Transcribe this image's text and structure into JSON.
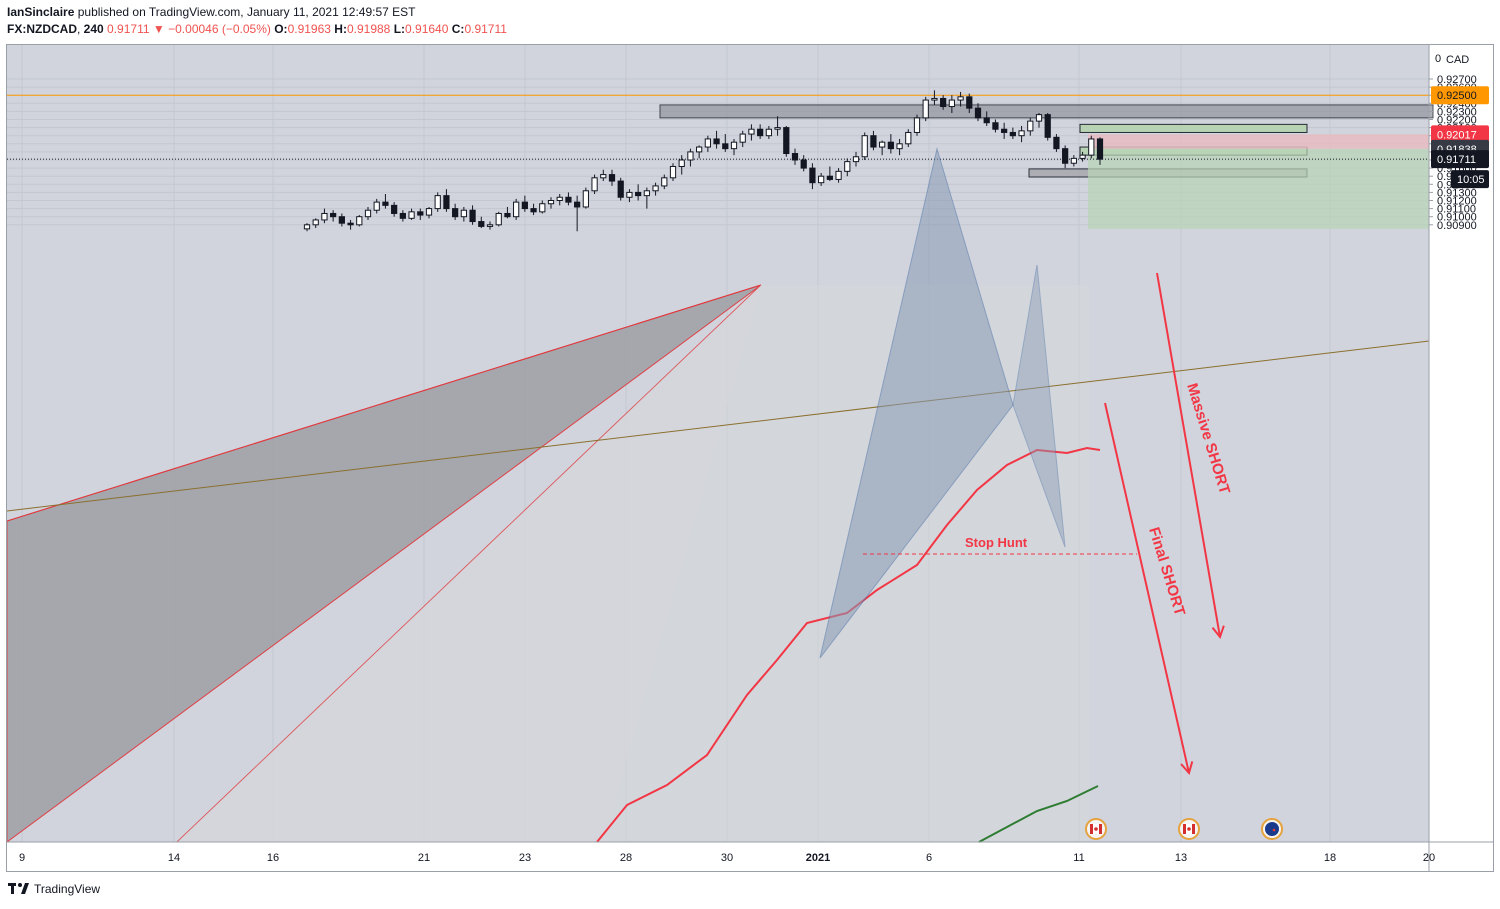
{
  "header": {
    "publisher": "IanSinclaire",
    "published_on": "published on TradingView.com, January 11, 2021 12:49:57 EST",
    "symbol": "FX:NZDCAD",
    "interval": "240",
    "last": "0.91711",
    "change_arrow": "▼",
    "change": "−0.00046 (−0.05%)",
    "open_label": "O:",
    "open": "0.91963",
    "high_label": "H:",
    "high": "0.91988",
    "low_label": "L:",
    "low": "0.91640",
    "close_label": "C:",
    "close": "0.91711"
  },
  "footer": {
    "brand": "TradingView"
  },
  "chart_data": {
    "type": "candlestick",
    "currency": "CAD",
    "ylim": [
      0.9085,
      0.928
    ],
    "y_ticks": [
      "0.92700",
      "0.92600",
      "0.92500",
      "0.92400",
      "0.92300",
      "0.92200",
      "0.92100",
      "0.92000",
      "0.91900",
      "0.91800",
      "0.91700",
      "0.91600",
      "0.91500",
      "0.91400",
      "0.91300",
      "0.91200",
      "0.91100",
      "0.91000",
      "0.90900"
    ],
    "x_ticks": [
      "9",
      "14",
      "16",
      "21",
      "23",
      "28",
      "30",
      "2021",
      "6",
      "11",
      "13",
      "18",
      "20"
    ],
    "price_labels": [
      {
        "value": "0.92500",
        "color": "#ff9800",
        "text_color": "#131722"
      },
      {
        "value": "0.92017",
        "color": "#f23645",
        "text_color": "#ffffff"
      },
      {
        "value": "0.91838",
        "color": "#363a45",
        "text_color": "#ffffff"
      },
      {
        "value": "0.91711",
        "color": "#131722",
        "text_color": "#ffffff"
      }
    ],
    "countdown": "10:05",
    "horizontal_line": 0.925,
    "annotations": [
      "Stop Hunt",
      "Massive SHORT",
      "Final SHORT"
    ],
    "event_markers": [
      "CAD",
      "CAD",
      "NZD"
    ],
    "candles": [
      [
        0.9085,
        0.9092,
        0.9082,
        0.909
      ],
      [
        0.909,
        0.9098,
        0.9086,
        0.9096
      ],
      [
        0.9096,
        0.911,
        0.9092,
        0.9104
      ],
      [
        0.9104,
        0.9108,
        0.9094,
        0.91
      ],
      [
        0.91,
        0.9104,
        0.9088,
        0.9092
      ],
      [
        0.9092,
        0.9096,
        0.9084,
        0.909
      ],
      [
        0.909,
        0.9102,
        0.9088,
        0.91
      ],
      [
        0.91,
        0.9112,
        0.9096,
        0.9108
      ],
      [
        0.9108,
        0.9122,
        0.9104,
        0.9118
      ],
      [
        0.9118,
        0.9128,
        0.911,
        0.9114
      ],
      [
        0.9114,
        0.9118,
        0.91,
        0.9104
      ],
      [
        0.9104,
        0.9108,
        0.9094,
        0.9098
      ],
      [
        0.9098,
        0.911,
        0.9096,
        0.9106
      ],
      [
        0.9106,
        0.911,
        0.9096,
        0.9102
      ],
      [
        0.9102,
        0.9112,
        0.9098,
        0.911
      ],
      [
        0.911,
        0.913,
        0.9106,
        0.9126
      ],
      [
        0.9126,
        0.9134,
        0.9106,
        0.911
      ],
      [
        0.911,
        0.9116,
        0.9096,
        0.91
      ],
      [
        0.91,
        0.9112,
        0.9094,
        0.9108
      ],
      [
        0.9108,
        0.9114,
        0.909,
        0.9094
      ],
      [
        0.9094,
        0.91,
        0.9086,
        0.9088
      ],
      [
        0.9088,
        0.9094,
        0.9084,
        0.909
      ],
      [
        0.909,
        0.9106,
        0.9088,
        0.9104
      ],
      [
        0.9104,
        0.9112,
        0.9098,
        0.91
      ],
      [
        0.91,
        0.9122,
        0.9096,
        0.9118
      ],
      [
        0.9118,
        0.9126,
        0.9106,
        0.911
      ],
      [
        0.911,
        0.9116,
        0.9102,
        0.9106
      ],
      [
        0.9106,
        0.912,
        0.9104,
        0.9116
      ],
      [
        0.9116,
        0.9124,
        0.911,
        0.912
      ],
      [
        0.912,
        0.9128,
        0.9114,
        0.9124
      ],
      [
        0.9124,
        0.913,
        0.9114,
        0.9118
      ],
      [
        0.9118,
        0.9126,
        0.9082,
        0.9112
      ],
      [
        0.9112,
        0.9136,
        0.911,
        0.9132
      ],
      [
        0.9132,
        0.9152,
        0.9128,
        0.9148
      ],
      [
        0.9148,
        0.9158,
        0.9144,
        0.9152
      ],
      [
        0.9152,
        0.9158,
        0.9138,
        0.9144
      ],
      [
        0.9144,
        0.9148,
        0.912,
        0.9124
      ],
      [
        0.9124,
        0.9134,
        0.9118,
        0.913
      ],
      [
        0.913,
        0.914,
        0.912,
        0.9126
      ],
      [
        0.9126,
        0.9136,
        0.911,
        0.9132
      ],
      [
        0.9132,
        0.9142,
        0.9126,
        0.9138
      ],
      [
        0.9138,
        0.9152,
        0.9134,
        0.9148
      ],
      [
        0.9148,
        0.9166,
        0.9144,
        0.9162
      ],
      [
        0.9162,
        0.9176,
        0.9152,
        0.917
      ],
      [
        0.917,
        0.9184,
        0.9162,
        0.918
      ],
      [
        0.918,
        0.9188,
        0.9172,
        0.9186
      ],
      [
        0.9186,
        0.92,
        0.918,
        0.9196
      ],
      [
        0.9196,
        0.9206,
        0.9184,
        0.919
      ],
      [
        0.919,
        0.9202,
        0.918,
        0.9184
      ],
      [
        0.9184,
        0.9196,
        0.9176,
        0.9192
      ],
      [
        0.9192,
        0.9206,
        0.9186,
        0.9202
      ],
      [
        0.9202,
        0.9214,
        0.9194,
        0.9208
      ],
      [
        0.9208,
        0.9214,
        0.9196,
        0.92
      ],
      [
        0.92,
        0.9212,
        0.9196,
        0.9208
      ],
      [
        0.9208,
        0.9224,
        0.92,
        0.921
      ],
      [
        0.921,
        0.9212,
        0.9174,
        0.9178
      ],
      [
        0.9178,
        0.9184,
        0.9164,
        0.917
      ],
      [
        0.917,
        0.9176,
        0.9156,
        0.916
      ],
      [
        0.916,
        0.9166,
        0.9134,
        0.9142
      ],
      [
        0.9142,
        0.9154,
        0.9138,
        0.915
      ],
      [
        0.915,
        0.9162,
        0.9144,
        0.9146
      ],
      [
        0.9146,
        0.916,
        0.9142,
        0.9156
      ],
      [
        0.9156,
        0.9172,
        0.915,
        0.9168
      ],
      [
        0.9168,
        0.918,
        0.9162,
        0.9174
      ],
      [
        0.9174,
        0.9204,
        0.917,
        0.92
      ],
      [
        0.92,
        0.9206,
        0.9182,
        0.9186
      ],
      [
        0.9186,
        0.9194,
        0.9176,
        0.9192
      ],
      [
        0.9192,
        0.9202,
        0.9178,
        0.9184
      ],
      [
        0.9184,
        0.9196,
        0.9176,
        0.919
      ],
      [
        0.919,
        0.9208,
        0.9186,
        0.9204
      ],
      [
        0.9204,
        0.9226,
        0.92,
        0.9222
      ],
      [
        0.9222,
        0.9248,
        0.9218,
        0.9244
      ],
      [
        0.9244,
        0.9256,
        0.9238,
        0.9246
      ],
      [
        0.9246,
        0.925,
        0.9232,
        0.9236
      ],
      [
        0.9236,
        0.925,
        0.9228,
        0.9244
      ],
      [
        0.9244,
        0.9254,
        0.9236,
        0.9248
      ],
      [
        0.9248,
        0.9252,
        0.9228,
        0.9234
      ],
      [
        0.9234,
        0.924,
        0.9218,
        0.9222
      ],
      [
        0.9222,
        0.923,
        0.9212,
        0.9216
      ],
      [
        0.9216,
        0.922,
        0.9204,
        0.9208
      ],
      [
        0.9208,
        0.9216,
        0.9196,
        0.9204
      ],
      [
        0.9204,
        0.921,
        0.9196,
        0.92
      ],
      [
        0.92,
        0.9212,
        0.9192,
        0.9206
      ],
      [
        0.9206,
        0.9222,
        0.92,
        0.9218
      ],
      [
        0.9218,
        0.9228,
        0.921,
        0.9226
      ],
      [
        0.9226,
        0.9228,
        0.9194,
        0.9198
      ],
      [
        0.9198,
        0.9202,
        0.918,
        0.9184
      ],
      [
        0.9184,
        0.9188,
        0.916,
        0.9166
      ],
      [
        0.9166,
        0.9176,
        0.9162,
        0.9172
      ],
      [
        0.9172,
        0.918,
        0.9168,
        0.9176
      ],
      [
        0.9176,
        0.92,
        0.9172,
        0.9196
      ],
      [
        0.9196,
        0.9198,
        0.9164,
        0.9171
      ]
    ],
    "zones": [
      {
        "type": "resistance",
        "from": 0.9222,
        "to": 0.9238
      },
      {
        "type": "target-green",
        "from": 0.9204,
        "to": 0.9214
      },
      {
        "type": "entry-green",
        "from": 0.9176,
        "to": 0.9186
      },
      {
        "type": "support",
        "from": 0.9149,
        "to": 0.9159
      },
      {
        "type": "stop-red",
        "from": 0.91838,
        "to": 0.92017
      },
      {
        "type": "profit-green",
        "from": 0.9085,
        "to": 0.91838
      }
    ]
  }
}
